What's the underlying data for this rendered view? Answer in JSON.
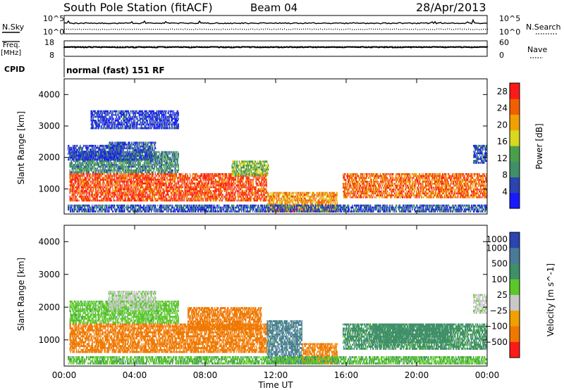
{
  "header": {
    "station": "South Pole Station (fitACF)",
    "beam": "Beam 04",
    "date": "28/Apr/2013"
  },
  "nsky_panel": {
    "left_label": "N.Sky",
    "right_label": "N.Search",
    "yticks_left": [
      "10^5",
      "10^0"
    ],
    "yticks_right": [
      "10^5",
      "10^0"
    ]
  },
  "freq_panel": {
    "left_label_1": "Freq.",
    "left_label_2": "[MHz]",
    "right_label": "Nave",
    "yticks_left": [
      "18",
      "8"
    ],
    "yticks_right": [
      "60",
      "0"
    ]
  },
  "cpid": {
    "label": "CPID",
    "value": "normal (fast) 151 RF"
  },
  "time_axis": {
    "label": "Time UT",
    "ticks": [
      "00:00",
      "04:00",
      "08:00",
      "12:00",
      "16:00",
      "20:00",
      "00:00"
    ]
  },
  "colors": {
    "power_scale": [
      "#1a1aff",
      "#2a44b0",
      "#3f8f68",
      "#4aa04a",
      "#d8d820",
      "#f0a000",
      "#f06000",
      "#ff1a1a"
    ],
    "velocity_scale": [
      "#2a44b0",
      "#4a7a9a",
      "#3f8f68",
      "#5ac82a",
      "#c8c8c8",
      "#f0a000",
      "#f07800",
      "#ff1a1a"
    ]
  },
  "chart_data": [
    {
      "type": "heatmap",
      "panel": "power",
      "ylabel": "Slant Range [km]",
      "xlabel": "Time UT",
      "xlim": [
        "00:00",
        "24:00"
      ],
      "ylim": [
        200,
        4500
      ],
      "yticks": [
        "1000",
        "2000",
        "3000",
        "4000"
      ],
      "colorbar": {
        "label": "Power [dB]",
        "ticks": [
          "4",
          "8",
          "12",
          "16",
          "20",
          "24",
          "28"
        ],
        "range": [
          0,
          30
        ]
      },
      "bands": [
        {
          "t0": 0.3,
          "t1": 11.5,
          "r0": 600,
          "r1": 1500,
          "level": 26
        },
        {
          "t0": 0.3,
          "t1": 6.5,
          "r0": 1500,
          "r1": 2200,
          "level": 10
        },
        {
          "t0": 2.5,
          "t1": 5.2,
          "r0": 1900,
          "r1": 2500,
          "level": 6
        },
        {
          "t0": 0.2,
          "t1": 3.2,
          "r0": 1900,
          "r1": 2400,
          "level": 4
        },
        {
          "t0": 9.5,
          "t1": 11.6,
          "r0": 1400,
          "r1": 1900,
          "level": 14
        },
        {
          "t0": 11.5,
          "t1": 15.5,
          "r0": 250,
          "r1": 900,
          "level": 22
        },
        {
          "t0": 15.8,
          "t1": 24.0,
          "r0": 700,
          "r1": 1500,
          "level": 24
        },
        {
          "t0": 23.2,
          "t1": 24.0,
          "r0": 1800,
          "r1": 2400,
          "level": 5
        },
        {
          "t0": 0.2,
          "t1": 24.0,
          "r0": 250,
          "r1": 500,
          "level": 6
        },
        {
          "t0": 1.5,
          "t1": 6.5,
          "r0": 2900,
          "r1": 3500,
          "level": 4
        }
      ]
    },
    {
      "type": "heatmap",
      "panel": "velocity",
      "ylabel": "Slant Range [km]",
      "xlabel": "Time UT",
      "xlim": [
        "00:00",
        "24:00"
      ],
      "ylim": [
        200,
        4500
      ],
      "yticks": [
        "1000",
        "2000",
        "3000",
        "4000"
      ],
      "colorbar": {
        "label": "Velocity [m s^-1]",
        "ticks": [
          "1000",
          "500",
          "100",
          "25",
          "−25",
          "−100",
          "−500",
          "−1000"
        ],
        "range": [
          -1000,
          1000
        ]
      },
      "bands": [
        {
          "t0": 0.3,
          "t1": 11.5,
          "r0": 600,
          "r1": 1500,
          "level": -200
        },
        {
          "t0": 7.0,
          "t1": 11.2,
          "r0": 1300,
          "r1": 2000,
          "level": -300
        },
        {
          "t0": 0.3,
          "t1": 6.5,
          "r0": 1500,
          "r1": 2200,
          "level": 60
        },
        {
          "t0": 2.5,
          "t1": 5.2,
          "r0": 1900,
          "r1": 2500,
          "level": 10
        },
        {
          "t0": 11.5,
          "t1": 13.5,
          "r0": 250,
          "r1": 1600,
          "level": 600
        },
        {
          "t0": 13.5,
          "t1": 15.5,
          "r0": 250,
          "r1": 900,
          "level": -150
        },
        {
          "t0": 15.8,
          "t1": 24.0,
          "r0": 700,
          "r1": 1500,
          "level": 150
        },
        {
          "t0": 17.5,
          "t1": 22.0,
          "r0": 900,
          "r1": 1500,
          "level": 300
        },
        {
          "t0": 23.2,
          "t1": 24.0,
          "r0": 1800,
          "r1": 2400,
          "level": 10
        },
        {
          "t0": 0.2,
          "t1": 24.0,
          "r0": 250,
          "r1": 500,
          "level": 80
        }
      ]
    }
  ]
}
